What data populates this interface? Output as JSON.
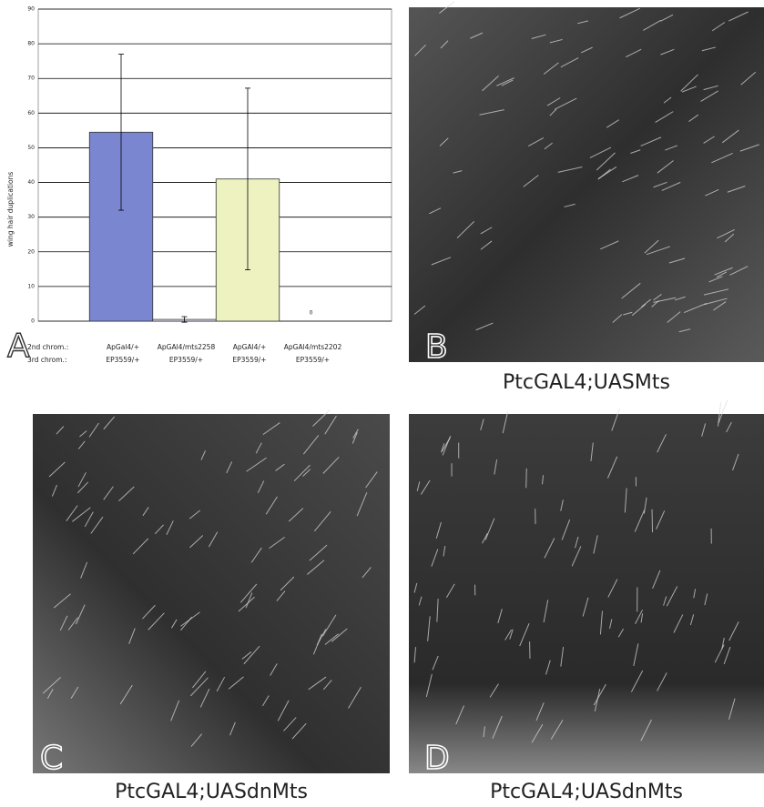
{
  "chart_data": {
    "type": "bar",
    "panel_label": "A",
    "y_label": "wing hair duplications",
    "row_labels": [
      "2nd chrom.:",
      "3rd chrom.:"
    ],
    "categories": [
      [
        "ApGal4/+",
        "EP3559/+"
      ],
      [
        "ApGAl4/mts2258",
        "EP3559/+"
      ],
      [
        "ApGAl4/+",
        "EP3559/+"
      ],
      [
        "ApGAl4/mts2202",
        "EP3559/+"
      ]
    ],
    "values": [
      54.5,
      0.5,
      41,
      0
    ],
    "errors": [
      22.5,
      0.8,
      26.2,
      null
    ],
    "value_labels": [
      null,
      null,
      null,
      "0"
    ],
    "colors": [
      "#7b86d0",
      "#eef0ff",
      "#eef2c0",
      "#ffffff"
    ],
    "ylim": [
      0,
      90
    ],
    "yticks": [
      0,
      10,
      20,
      30,
      40,
      50,
      60,
      70,
      80,
      90
    ],
    "grid": true
  },
  "panels": [
    {
      "label": "B",
      "caption": "PtcGAL4;UASMts"
    },
    {
      "label": "C",
      "caption": "PtcGAL4;UASdnMts"
    },
    {
      "label": "D",
      "caption": "PtcGAL4;UASdnMts"
    }
  ]
}
